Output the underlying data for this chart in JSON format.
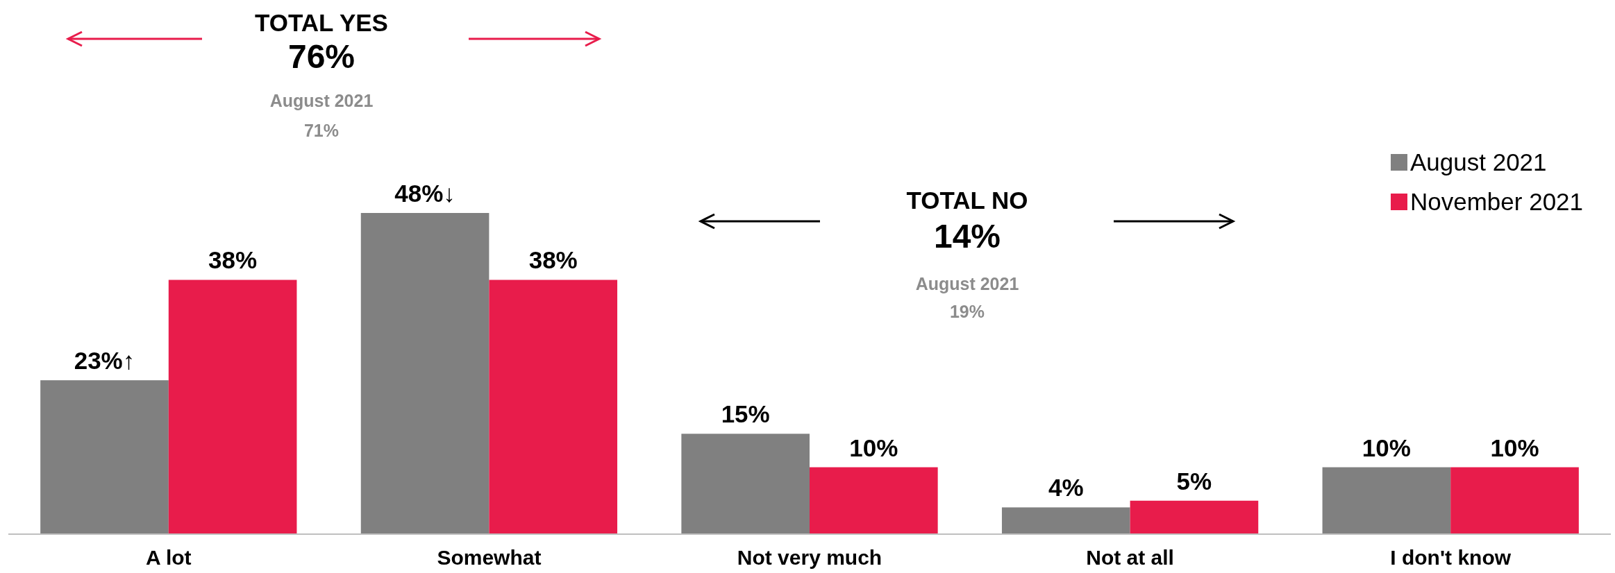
{
  "chart_data": {
    "type": "bar",
    "categories": [
      "A lot",
      "Somewhat",
      "Not very much",
      "Not at all",
      "I don't know"
    ],
    "series": [
      {
        "name": "August 2021",
        "color": "#808080",
        "values": [
          23,
          48,
          15,
          4,
          10
        ],
        "value_labels": [
          "23%↑",
          "48%↓",
          "15%",
          "4%",
          "10%"
        ]
      },
      {
        "name": "November 2021",
        "color": "#e81c4b",
        "values": [
          38,
          38,
          10,
          5,
          10
        ],
        "value_labels": [
          "38%",
          "38%",
          "10%",
          "5%",
          "10%"
        ]
      }
    ],
    "relative": false,
    "legend": "top right",
    "annotations": [
      "TOTAL YES",
      "76%",
      "August 2021",
      "71%",
      "TOTAL NO",
      "14%",
      "August 2021",
      "19%"
    ]
  }
}
